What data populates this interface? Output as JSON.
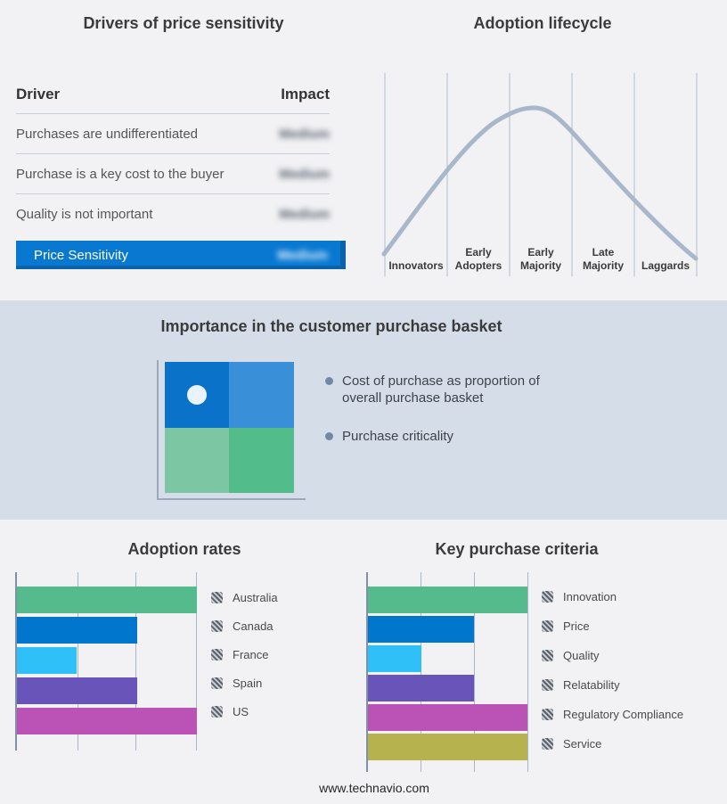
{
  "drivers_panel": {
    "title": "Drivers of price sensitivity",
    "col_driver": "Driver",
    "col_impact": "Impact",
    "rows": [
      {
        "driver": "Purchases are undifferentiated",
        "impact": "Medium"
      },
      {
        "driver": "Purchase is a key cost to the buyer",
        "impact": "Medium"
      },
      {
        "driver": "Quality is not important",
        "impact": "Medium"
      }
    ],
    "highlight_row": {
      "driver": "Price Sensitivity",
      "impact": "Medium"
    },
    "highlight_color": "#0878D1"
  },
  "lifecycle_panel": {
    "title": "Adoption lifecycle",
    "curve_color": "#A9B7CB",
    "gridline_color": "#AEBDD0"
  },
  "basket_panel": {
    "title": "Importance in the customer purchase basket",
    "band_color": "#D4DDE8",
    "quadrant_colors": {
      "top_left": "#0B72C9",
      "top_right": "#3990D8",
      "bottom_left": "#7DC6A3",
      "bottom_right": "#52BD8B"
    },
    "marker": "white-dot-in-top-left-quadrant",
    "bullets": [
      "Cost of purchase as proportion of overall purchase basket",
      "Purchase criticality"
    ]
  },
  "footer": "www.technavio.com",
  "chart_data": [
    {
      "name": "adoption_lifecycle",
      "type": "line",
      "title": "Adoption lifecycle",
      "x_categories": [
        "Innovators",
        "Early Adopters",
        "Early Majority",
        "Late Majority",
        "Laggards"
      ],
      "shape": "bell curve peaking between Early Majority gridlines",
      "relative_points": [
        [
          0.0,
          0.03
        ],
        [
          0.2,
          0.44
        ],
        [
          0.42,
          0.72
        ],
        [
          0.48,
          0.75
        ],
        [
          0.6,
          0.62
        ],
        [
          0.8,
          0.33
        ],
        [
          1.0,
          0.0
        ]
      ],
      "legend_position": "none",
      "grid": "vertical-only"
    },
    {
      "name": "adoption_rates",
      "type": "bar",
      "orientation": "horizontal",
      "title": "Adoption rates",
      "categories": [
        "Australia",
        "Canada",
        "France",
        "Spain",
        "US"
      ],
      "values": [
        3,
        2,
        1,
        2,
        3
      ],
      "xlim": [
        0,
        3
      ],
      "xlabel": "",
      "ylabel": "",
      "value_note": "lengths read against 3 unlabeled gridline units",
      "colors": [
        "#55BB8D",
        "#0077CC",
        "#30C0F8",
        "#6954BA",
        "#BA53B5"
      ],
      "legend_position": "right",
      "legend_marker": "hatched-square"
    },
    {
      "name": "key_purchase_criteria",
      "type": "bar",
      "orientation": "horizontal",
      "title": "Key purchase criteria",
      "categories": [
        "Innovation",
        "Price",
        "Quality",
        "Relatability",
        "Regulatory Compliance",
        "Service"
      ],
      "values": [
        3,
        2,
        1,
        2,
        3,
        3
      ],
      "xlim": [
        0,
        3
      ],
      "xlabel": "",
      "ylabel": "",
      "value_note": "lengths read against 3 unlabeled gridline units",
      "colors": [
        "#55BB8D",
        "#0077CC",
        "#30C0F8",
        "#6954BA",
        "#BA53B5",
        "#B6B24E"
      ],
      "legend_position": "right",
      "legend_marker": "hatched-square"
    }
  ]
}
